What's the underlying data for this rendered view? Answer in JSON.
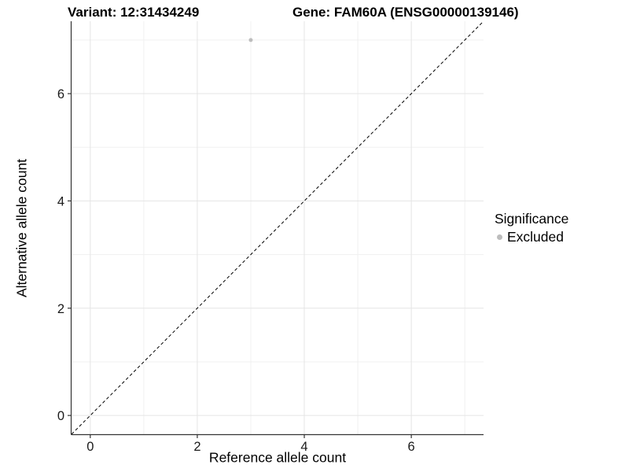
{
  "chart_data": {
    "type": "scatter",
    "titles": [
      "Variant: 12:31434249",
      "Gene: FAM60A (ENSG00000139146)"
    ],
    "xlabel": "Reference allele count",
    "ylabel": "Alternative allele count",
    "xlim": [
      -0.35,
      7.35
    ],
    "ylim": [
      -0.35,
      7.35
    ],
    "xticks": [
      0,
      2,
      4,
      6
    ],
    "yticks": [
      0,
      2,
      4,
      6
    ],
    "minor_xticks": [
      1,
      3,
      5,
      7
    ],
    "minor_yticks": [
      1,
      3,
      5,
      7
    ],
    "grid": "major+minor",
    "reference_line": {
      "type": "identity y=x",
      "dashed": true,
      "color": "#000000"
    },
    "series": [
      {
        "name": "Excluded",
        "color": "#bdbdbd",
        "point_radius": 2.5,
        "points": [
          {
            "x": 3,
            "y": 7
          }
        ]
      }
    ],
    "legend": {
      "title": "Significance",
      "position": "right",
      "entries": [
        {
          "label": "Excluded",
          "color": "#bdbdbd"
        }
      ]
    },
    "colors": {
      "grid_major": "#e5e5e5",
      "grid_minor": "#f0f0f0",
      "axis": "#333333",
      "tick_text": "#1a1a1a",
      "point": "#bdbdbd"
    }
  }
}
